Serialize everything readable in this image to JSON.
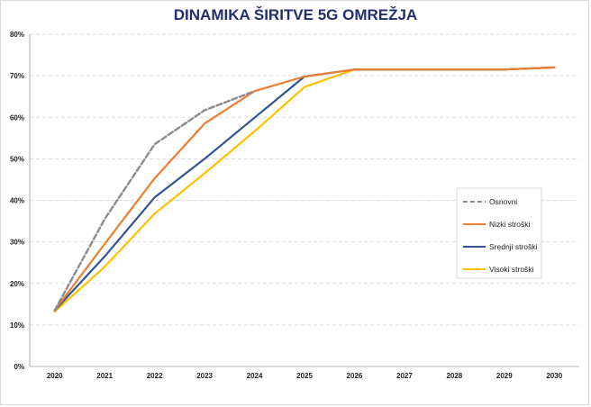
{
  "chart_data": {
    "type": "line",
    "title": "DINAMIKA ŠIRITVE 5G OMREŽJA",
    "xlabel": "",
    "ylabel": "",
    "ylim": [
      0,
      80
    ],
    "y_ticks": [
      "0%",
      "10%",
      "20%",
      "30%",
      "40%",
      "50%",
      "60%",
      "70%",
      "80%"
    ],
    "y_tick_values": [
      0,
      10,
      20,
      30,
      40,
      50,
      60,
      70,
      80
    ],
    "categories": [
      "2020",
      "2021",
      "2022",
      "2023",
      "2024",
      "2025",
      "2026",
      "2027",
      "2028",
      "2029",
      "2030"
    ],
    "grid": true,
    "legend_position": "right",
    "series": [
      {
        "name": "Osnovni",
        "color": "#8c8c8c",
        "dashed": true,
        "values": [
          13.5,
          35.5,
          53.5,
          61.7,
          66.3,
          null,
          null,
          null,
          null,
          null,
          null
        ]
      },
      {
        "name": "Nizki stroški",
        "color": "#ed7d31",
        "dashed": false,
        "values": [
          13.5,
          29.5,
          45.3,
          58.5,
          66.3,
          69.8,
          71.5,
          71.5,
          71.5,
          71.5,
          72.0
        ]
      },
      {
        "name": "Srednji stroški",
        "color": "#2f5597",
        "dashed": false,
        "values": [
          13.5,
          26.5,
          40.7,
          50.0,
          59.9,
          69.8,
          71.5,
          71.5,
          71.5,
          71.5,
          72.0
        ]
      },
      {
        "name": "Visoki stroški",
        "color": "#ffc000",
        "dashed": false,
        "values": [
          13.2,
          24.0,
          36.8,
          46.5,
          56.6,
          67.3,
          71.5,
          71.5,
          71.5,
          71.5,
          72.0
        ]
      }
    ]
  }
}
